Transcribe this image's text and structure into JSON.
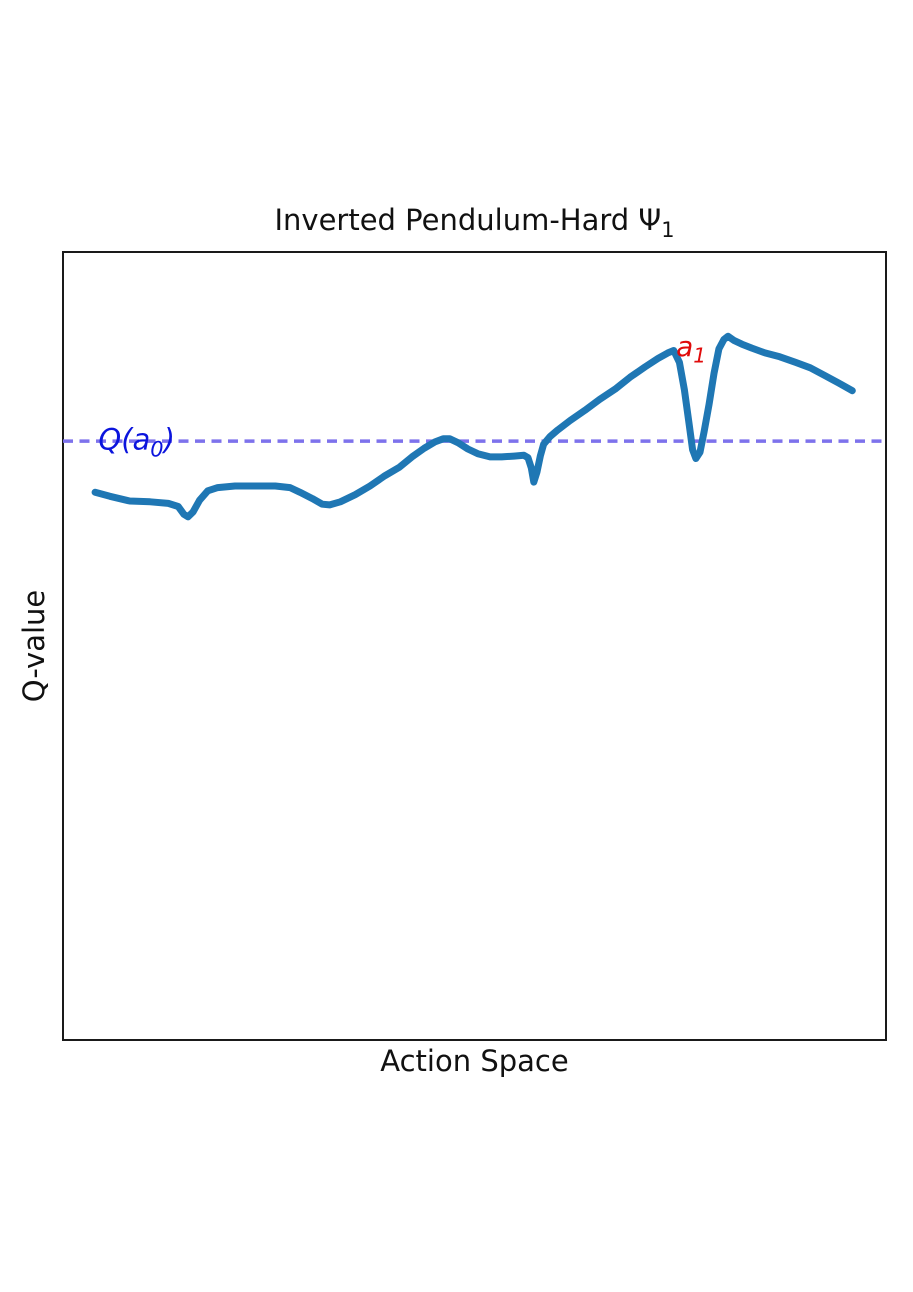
{
  "figure": {
    "background": "#ffffff",
    "frame_color": "#1a1a1a"
  },
  "chart_data": {
    "type": "line",
    "title_full": "Inverted Pendulum-Hard Ψ₁",
    "title_main": "Inverted Pendulum-Hard Ψ",
    "title_sub": "1",
    "xlabel": "Action Space",
    "ylabel": "Q-value",
    "axes": {
      "ticks_visible": false,
      "grid": false,
      "x_range": [
        0,
        100
      ],
      "y_range": [
        0,
        100
      ]
    },
    "series": [
      {
        "color": "#1f77b4",
        "line_width": 7,
        "points": [
          [
            3.9,
            69.5
          ],
          [
            5.7,
            69.0
          ],
          [
            8.1,
            68.4
          ],
          [
            10.6,
            68.3
          ],
          [
            12.8,
            68.1
          ],
          [
            14.0,
            67.7
          ],
          [
            14.7,
            66.7
          ],
          [
            15.2,
            66.4
          ],
          [
            15.8,
            67.0
          ],
          [
            16.6,
            68.5
          ],
          [
            17.6,
            69.7
          ],
          [
            18.8,
            70.1
          ],
          [
            20.9,
            70.3
          ],
          [
            23.3,
            70.3
          ],
          [
            25.8,
            70.3
          ],
          [
            27.6,
            70.1
          ],
          [
            28.8,
            69.5
          ],
          [
            30.3,
            68.7
          ],
          [
            31.5,
            68.0
          ],
          [
            32.4,
            67.9
          ],
          [
            33.7,
            68.3
          ],
          [
            35.5,
            69.2
          ],
          [
            37.3,
            70.3
          ],
          [
            39.1,
            71.6
          ],
          [
            40.9,
            72.7
          ],
          [
            42.4,
            74.0
          ],
          [
            43.9,
            75.1
          ],
          [
            45.2,
            75.9
          ],
          [
            46.2,
            76.3
          ],
          [
            47.0,
            76.3
          ],
          [
            48.0,
            75.8
          ],
          [
            49.2,
            75.0
          ],
          [
            50.4,
            74.4
          ],
          [
            51.9,
            74.0
          ],
          [
            53.3,
            74.0
          ],
          [
            54.8,
            74.1
          ],
          [
            56.0,
            74.2
          ],
          [
            56.5,
            73.9
          ],
          [
            56.9,
            72.6
          ],
          [
            57.2,
            70.8
          ],
          [
            57.6,
            72.1
          ],
          [
            58.0,
            74.1
          ],
          [
            58.4,
            75.6
          ],
          [
            59.2,
            76.6
          ],
          [
            60.1,
            77.4
          ],
          [
            61.6,
            78.6
          ],
          [
            63.4,
            79.9
          ],
          [
            65.2,
            81.3
          ],
          [
            67.1,
            82.6
          ],
          [
            68.9,
            84.1
          ],
          [
            70.7,
            85.4
          ],
          [
            72.3,
            86.5
          ],
          [
            73.5,
            87.2
          ],
          [
            74.2,
            87.5
          ],
          [
            74.9,
            86.0
          ],
          [
            75.5,
            82.5
          ],
          [
            76.1,
            78.0
          ],
          [
            76.5,
            74.9
          ],
          [
            76.9,
            73.8
          ],
          [
            77.4,
            74.6
          ],
          [
            77.9,
            77.2
          ],
          [
            78.5,
            80.7
          ],
          [
            79.1,
            84.6
          ],
          [
            79.7,
            87.7
          ],
          [
            80.3,
            88.9
          ],
          [
            80.8,
            89.3
          ],
          [
            81.5,
            88.8
          ],
          [
            82.5,
            88.3
          ],
          [
            83.7,
            87.8
          ],
          [
            85.3,
            87.2
          ],
          [
            87.1,
            86.7
          ],
          [
            89.0,
            86.0
          ],
          [
            90.8,
            85.3
          ],
          [
            92.6,
            84.3
          ],
          [
            94.2,
            83.4
          ],
          [
            95.4,
            82.7
          ],
          [
            95.9,
            82.4
          ]
        ]
      }
    ],
    "baseline": {
      "y": 76.0,
      "style": "dashed",
      "color": "#7d72ec",
      "line_width": 3.5,
      "label": {
        "text_full": "Q(a₀)",
        "prefix": "Q(a",
        "sub": "0",
        "suffix": ")",
        "color": "#0b14dd",
        "x": 4.3
      }
    },
    "annotation_a1": {
      "text_full": "a₁",
      "prefix": "a",
      "sub": "1",
      "color": "#e00b0b",
      "x": 74.5,
      "y": 89.7
    }
  }
}
